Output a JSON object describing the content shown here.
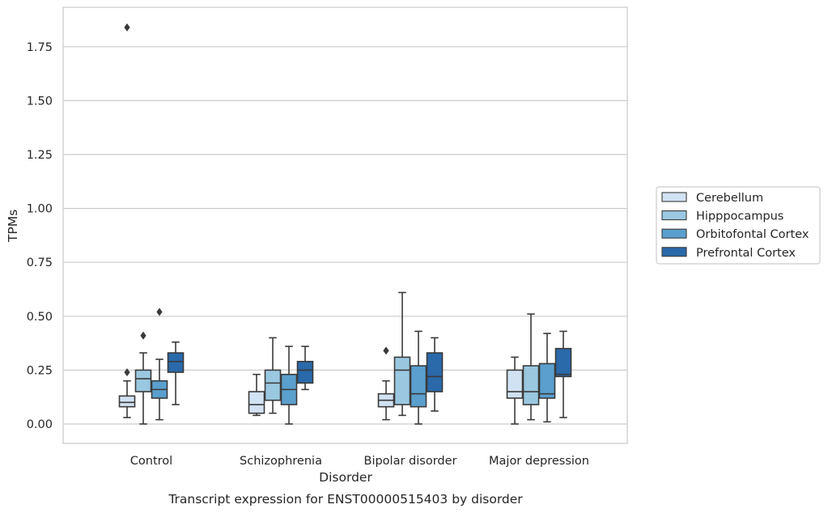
{
  "chart_data": {
    "type": "boxplot",
    "xlabel": "Disorder",
    "ylabel": "TPMs",
    "caption": "Transcript expression for ENST00000515403 by disorder",
    "ylim": [
      -0.09,
      1.94
    ],
    "yticks": [
      "0.00",
      "0.25",
      "0.50",
      "0.75",
      "1.00",
      "1.25",
      "1.50",
      "1.75"
    ],
    "yticks_values": [
      0,
      0.25,
      0.5,
      0.75,
      1.0,
      1.25,
      1.5,
      1.75
    ],
    "grid": "horizontal",
    "legend_position": "right",
    "categories": [
      "Control",
      "Schizophrenia",
      "Bipolar disorder",
      "Major depression"
    ],
    "series": [
      {
        "name": "Cerebellum",
        "color": "#d1e2f2",
        "boxes": [
          {
            "whislo": 0.03,
            "q1": 0.08,
            "med": 0.1,
            "q3": 0.13,
            "whishi": 0.2,
            "fliers": [
              0.24,
              1.84
            ]
          },
          {
            "whislo": 0.04,
            "q1": 0.05,
            "med": 0.09,
            "q3": 0.15,
            "whishi": 0.23,
            "fliers": []
          },
          {
            "whislo": 0.02,
            "q1": 0.08,
            "med": 0.11,
            "q3": 0.14,
            "whishi": 0.2,
            "fliers": [
              0.34
            ]
          },
          {
            "whislo": 0.0,
            "q1": 0.12,
            "med": 0.15,
            "q3": 0.25,
            "whishi": 0.31,
            "fliers": []
          }
        ]
      },
      {
        "name": "Hipppocampus",
        "color": "#9ac8e0",
        "boxes": [
          {
            "whislo": 0.0,
            "q1": 0.15,
            "med": 0.21,
            "q3": 0.25,
            "whishi": 0.33,
            "fliers": [
              0.41
            ]
          },
          {
            "whislo": 0.05,
            "q1": 0.11,
            "med": 0.19,
            "q3": 0.25,
            "whishi": 0.4,
            "fliers": []
          },
          {
            "whislo": 0.04,
            "q1": 0.09,
            "med": 0.25,
            "q3": 0.31,
            "whishi": 0.61,
            "fliers": []
          },
          {
            "whislo": 0.02,
            "q1": 0.09,
            "med": 0.15,
            "q3": 0.27,
            "whishi": 0.51,
            "fliers": []
          }
        ]
      },
      {
        "name": "Orbitofontal Cortex",
        "color": "#5a9fcd",
        "boxes": [
          {
            "whislo": 0.02,
            "q1": 0.12,
            "med": 0.16,
            "q3": 0.2,
            "whishi": 0.3,
            "fliers": [
              0.52
            ]
          },
          {
            "whislo": 0.0,
            "q1": 0.09,
            "med": 0.16,
            "q3": 0.23,
            "whishi": 0.36,
            "fliers": []
          },
          {
            "whislo": 0.0,
            "q1": 0.08,
            "med": 0.14,
            "q3": 0.27,
            "whishi": 0.43,
            "fliers": []
          },
          {
            "whislo": 0.01,
            "q1": 0.12,
            "med": 0.14,
            "q3": 0.28,
            "whishi": 0.42,
            "fliers": []
          }
        ]
      },
      {
        "name": "Prefrontal Cortex",
        "color": "#2a69aa",
        "boxes": [
          {
            "whislo": 0.09,
            "q1": 0.24,
            "med": 0.29,
            "q3": 0.33,
            "whishi": 0.38,
            "fliers": []
          },
          {
            "whislo": 0.16,
            "q1": 0.19,
            "med": 0.25,
            "q3": 0.29,
            "whishi": 0.36,
            "fliers": []
          },
          {
            "whislo": 0.06,
            "q1": 0.15,
            "med": 0.22,
            "q3": 0.33,
            "whishi": 0.4,
            "fliers": []
          },
          {
            "whislo": 0.03,
            "q1": 0.22,
            "med": 0.23,
            "q3": 0.35,
            "whishi": 0.43,
            "fliers": []
          }
        ]
      }
    ]
  }
}
